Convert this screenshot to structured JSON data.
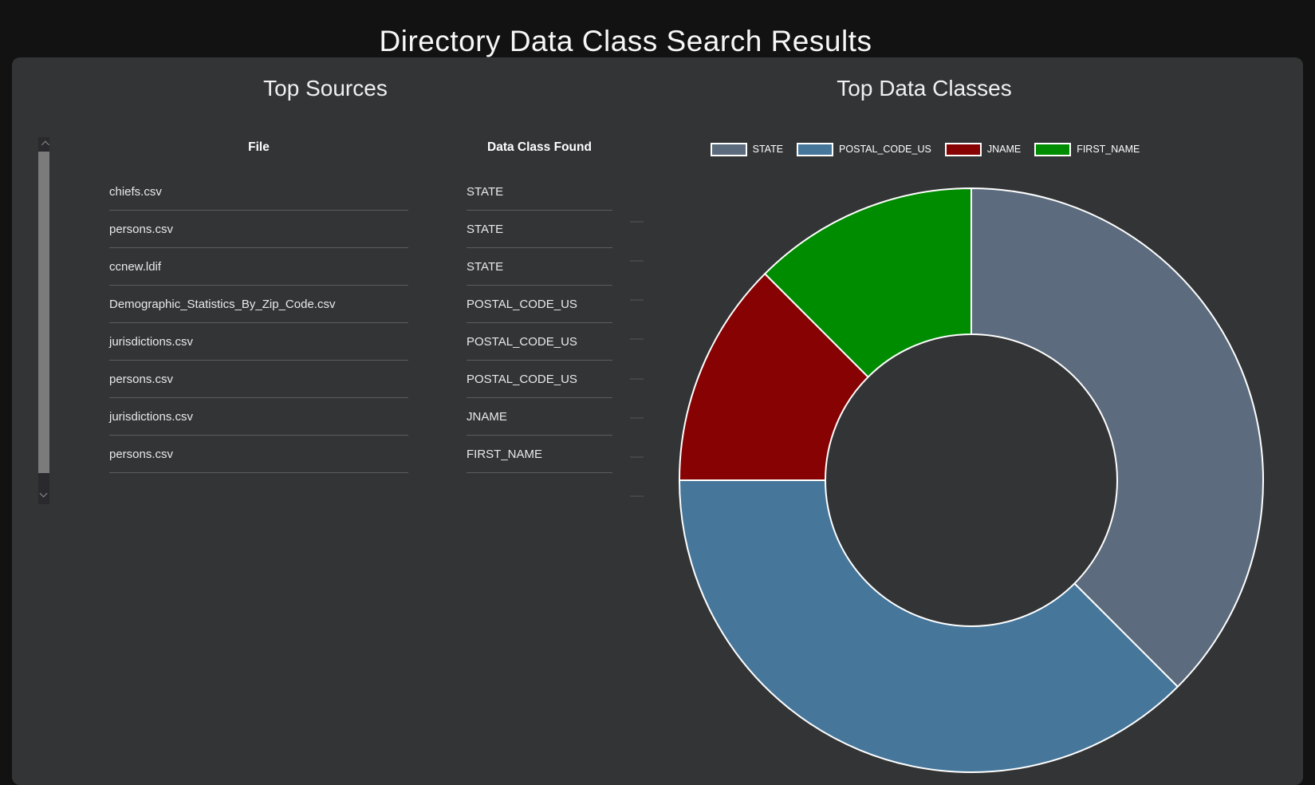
{
  "header": {
    "title": "Directory Data Class Search Results"
  },
  "sources": {
    "title": "Top Sources",
    "columns": {
      "file": "File",
      "data_class": "Data Class Found"
    },
    "rows": [
      {
        "file": "chiefs.csv",
        "data_class": "STATE"
      },
      {
        "file": "persons.csv",
        "data_class": "STATE"
      },
      {
        "file": "ccnew.ldif",
        "data_class": "STATE"
      },
      {
        "file": "Demographic_Statistics_By_Zip_Code.csv",
        "data_class": "POSTAL_CODE_US"
      },
      {
        "file": "jurisdictions.csv",
        "data_class": "POSTAL_CODE_US"
      },
      {
        "file": "persons.csv",
        "data_class": "POSTAL_CODE_US"
      },
      {
        "file": "jurisdictions.csv",
        "data_class": "JNAME"
      },
      {
        "file": "persons.csv",
        "data_class": "FIRST_NAME"
      }
    ]
  },
  "classes": {
    "title": "Top Data Classes"
  },
  "chart_data": {
    "type": "pie",
    "subtype": "donut",
    "title": "Top Data Classes",
    "categories": [
      "STATE",
      "POSTAL_CODE_US",
      "JNAME",
      "FIRST_NAME"
    ],
    "values": [
      3,
      3,
      1,
      1
    ],
    "colors": [
      "#5c6c7e",
      "#46779b",
      "#870202",
      "#008c00"
    ],
    "legend_position": "top",
    "start_angle_deg": 0,
    "direction": "clockwise",
    "inner_radius_ratio": 0.5,
    "slice_stroke": "#ffffff"
  },
  "theme": {
    "page_bg": "#121212",
    "panel_bg": "#333436",
    "text": "#f2f2f2",
    "divider": "#5c5c5c",
    "scrollbar_thumb": "#7b7b7b",
    "scrollbar_track": "#2a2a2e"
  }
}
